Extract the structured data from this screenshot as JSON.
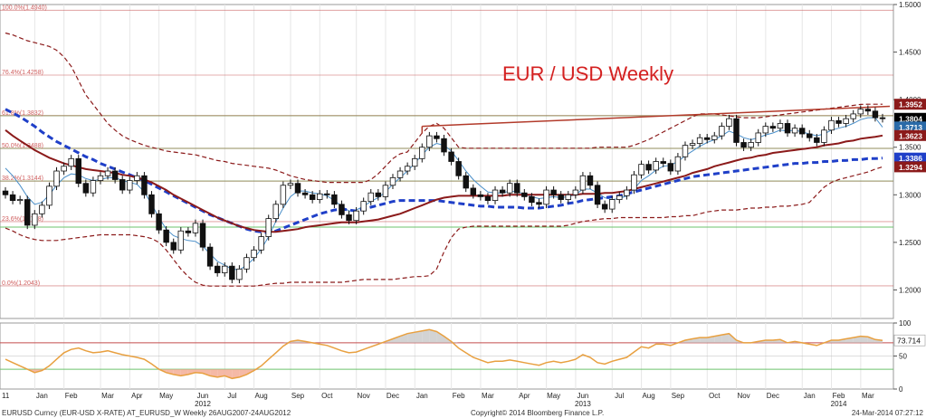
{
  "title": "EUR / USD Weekly",
  "footer": {
    "ticker": "EURUSD Curncy (EUR-USD X-RATE) AT_EURUSD_W  Weekly 26AUG2007-24AUG2012",
    "copyright": "Copyright© 2014 Bloomberg Finance L.P.",
    "timestamp": "24-Mar-2014 07:27:12"
  },
  "colors": {
    "fib": "#c44d4d",
    "tenkan": "#4a8fc9",
    "kijun": "#1f3fc8",
    "ma": "#8b1a1a",
    "band": "#8b1a1a",
    "trend": "#b23a2a",
    "hline": "#6cc36c",
    "rsi": "#e8a040"
  },
  "chart_data": [
    {
      "type": "candlestick",
      "title": "EUR / USD Weekly",
      "ylim": [
        1.17,
        1.5
      ],
      "y_ticks": [
        "1.5000",
        "1.4500",
        "1.4000",
        "1.3500",
        "1.3000",
        "1.2500",
        "1.2000"
      ],
      "y_tick_values": [
        1.5,
        1.45,
        1.4,
        1.35,
        1.3,
        1.25,
        1.2
      ],
      "x_labels": [
        "11",
        "Jan",
        "Feb",
        "Mar",
        "Apr",
        "May",
        "Jun",
        "Jul",
        "Aug",
        "Sep",
        "Oct",
        "Nov",
        "Dec",
        "Jan",
        "Feb",
        "Mar",
        "Apr",
        "May",
        "Jun",
        "Jul",
        "Aug",
        "Sep",
        "Oct",
        "Nov",
        "Dec",
        "Jan",
        "Feb",
        "Mar"
      ],
      "x_label_weeks": [
        0,
        5,
        9,
        14,
        18,
        22,
        27,
        31,
        35,
        40,
        44,
        49,
        53,
        57,
        62,
        66,
        71,
        75,
        79,
        84,
        88,
        92,
        97,
        101,
        105,
        110,
        114,
        118
      ],
      "year_labels": [
        "2012",
        "2013",
        "2014"
      ],
      "year_label_weeks": [
        27,
        79,
        114
      ],
      "fib_levels": [
        {
          "label": "100.0%(1.4940)",
          "value": 1.494
        },
        {
          "label": "76.4%(1.4258)",
          "value": 1.4258
        },
        {
          "label": "61.8%(1.3832)",
          "value": 1.3832
        },
        {
          "label": "50.0%(1.3488)",
          "value": 1.3488
        },
        {
          "label": "38.2%(1.3144)",
          "value": 1.3144
        },
        {
          "label": "23.6%(1.2718)",
          "value": 1.2718
        },
        {
          "label": "0.0%(1.2043)",
          "value": 1.2043
        }
      ],
      "green_lines": [
        1.3832,
        1.3488,
        1.3144,
        1.266
      ],
      "price_tags": [
        {
          "label": "1.3952",
          "value": 1.3952,
          "color": "#8b1a1a"
        },
        {
          "label": "1.3804",
          "value": 1.3804,
          "color": "#000000"
        },
        {
          "label": "1.3713",
          "value": 1.3713,
          "color": "#2a6aa8"
        },
        {
          "label": "1.3623",
          "value": 1.3623,
          "color": "#8b1a1a"
        },
        {
          "label": "1.3386",
          "value": 1.3386,
          "color": "#1f3fc8"
        },
        {
          "label": "1.3294",
          "value": 1.3294,
          "color": "#8b1a1a"
        }
      ],
      "trendline": [
        [
          57,
          1.372
        ],
        [
          121,
          1.393
        ]
      ],
      "closes": [
        1.3,
        1.294,
        1.295,
        1.268,
        1.28,
        1.289,
        1.309,
        1.325,
        1.33,
        1.338,
        1.312,
        1.302,
        1.315,
        1.32,
        1.325,
        1.316,
        1.305,
        1.315,
        1.32,
        1.3,
        1.28,
        1.263,
        1.25,
        1.242,
        1.262,
        1.26,
        1.27,
        1.245,
        1.225,
        1.218,
        1.225,
        1.211,
        1.222,
        1.234,
        1.242,
        1.256,
        1.275,
        1.29,
        1.31,
        1.312,
        1.302,
        1.3,
        1.295,
        1.301,
        1.3,
        1.29,
        1.279,
        1.273,
        1.283,
        1.293,
        1.302,
        1.298,
        1.31,
        1.318,
        1.325,
        1.33,
        1.338,
        1.35,
        1.362,
        1.359,
        1.345,
        1.335,
        1.32,
        1.307,
        1.3,
        1.298,
        1.294,
        1.305,
        1.302,
        1.312,
        1.302,
        1.298,
        1.292,
        1.29,
        1.305,
        1.3,
        1.295,
        1.3,
        1.305,
        1.32,
        1.31,
        1.29,
        1.285,
        1.295,
        1.299,
        1.305,
        1.321,
        1.332,
        1.326,
        1.335,
        1.333,
        1.325,
        1.34,
        1.352,
        1.354,
        1.36,
        1.358,
        1.362,
        1.372,
        1.38,
        1.355,
        1.35,
        1.355,
        1.365,
        1.372,
        1.37,
        1.375,
        1.365,
        1.37,
        1.364,
        1.36,
        1.355,
        1.368,
        1.378,
        1.375,
        1.38,
        1.385,
        1.39,
        1.388,
        1.381,
        1.38
      ],
      "series": [
        {
          "name": "",
          "role": "tenkan",
          "values": [
            1.328,
            1.32,
            1.31,
            1.298,
            1.29,
            1.292,
            1.3,
            1.31,
            1.318,
            1.322,
            1.321,
            1.317,
            1.315,
            1.316,
            1.318,
            1.318,
            1.315,
            1.313,
            1.311,
            1.303,
            1.29,
            1.276,
            1.264,
            1.257,
            1.254,
            1.252,
            1.251,
            1.246,
            1.238,
            1.23,
            1.226,
            1.222,
            1.221,
            1.226,
            1.233,
            1.243,
            1.256,
            1.272,
            1.286,
            1.298,
            1.304,
            1.304,
            1.302,
            1.301,
            1.299,
            1.294,
            1.288,
            1.283,
            1.284,
            1.288,
            1.293,
            1.297,
            1.303,
            1.311,
            1.318,
            1.325,
            1.333,
            1.342,
            1.35,
            1.354,
            1.352,
            1.346,
            1.336,
            1.325,
            1.316,
            1.309,
            1.303,
            1.302,
            1.302,
            1.304,
            1.303,
            1.301,
            1.298,
            1.296,
            1.297,
            1.298,
            1.297,
            1.298,
            1.3,
            1.306,
            1.306,
            1.302,
            1.297,
            1.295,
            1.296,
            1.299,
            1.306,
            1.315,
            1.32,
            1.326,
            1.33,
            1.331,
            1.335,
            1.341,
            1.346,
            1.351,
            1.355,
            1.358,
            1.362,
            1.367,
            1.364,
            1.36,
            1.358,
            1.36,
            1.363,
            1.365,
            1.368,
            1.367,
            1.368,
            1.366,
            1.364,
            1.362,
            1.364,
            1.368,
            1.37,
            1.372,
            1.375,
            1.379,
            1.381,
            1.381,
            1.371
          ]
        },
        {
          "name": "",
          "role": "kijun",
          "values": [
            1.39,
            1.386,
            1.382,
            1.377,
            1.372,
            1.366,
            1.361,
            1.356,
            1.352,
            1.348,
            1.344,
            1.34,
            1.337,
            1.333,
            1.33,
            1.327,
            1.324,
            1.321,
            1.318,
            1.315,
            1.311,
            1.307,
            1.303,
            1.299,
            1.295,
            1.291,
            1.287,
            1.283,
            1.279,
            1.276,
            1.273,
            1.27,
            1.267,
            1.264,
            1.262,
            1.261,
            1.26,
            1.262,
            1.265,
            1.268,
            1.271,
            1.274,
            1.277,
            1.28,
            1.282,
            1.284,
            1.285,
            1.284,
            1.283,
            1.285,
            1.287,
            1.289,
            1.291,
            1.293,
            1.294,
            1.294,
            1.294,
            1.294,
            1.294,
            1.294,
            1.293,
            1.292,
            1.291,
            1.29,
            1.289,
            1.288,
            1.288,
            1.287,
            1.287,
            1.287,
            1.287,
            1.286,
            1.286,
            1.286,
            1.287,
            1.288,
            1.289,
            1.291,
            1.292,
            1.294,
            1.295,
            1.296,
            1.297,
            1.298,
            1.299,
            1.301,
            1.303,
            1.305,
            1.307,
            1.309,
            1.311,
            1.313,
            1.315,
            1.317,
            1.319,
            1.32,
            1.321,
            1.322,
            1.323,
            1.324,
            1.325,
            1.326,
            1.327,
            1.328,
            1.329,
            1.33,
            1.331,
            1.332,
            1.333,
            1.333,
            1.334,
            1.334,
            1.335,
            1.335,
            1.336,
            1.336,
            1.337,
            1.337,
            1.338,
            1.338,
            1.3386
          ]
        },
        {
          "name": "",
          "role": "ma",
          "values": [
            1.368,
            1.362,
            1.357,
            1.352,
            1.347,
            1.343,
            1.339,
            1.336,
            1.333,
            1.331,
            1.329,
            1.327,
            1.326,
            1.325,
            1.324,
            1.323,
            1.321,
            1.32,
            1.318,
            1.316,
            1.313,
            1.309,
            1.305,
            1.3,
            1.296,
            1.292,
            1.288,
            1.284,
            1.28,
            1.276,
            1.273,
            1.27,
            1.267,
            1.265,
            1.263,
            1.262,
            1.261,
            1.261,
            1.262,
            1.263,
            1.264,
            1.266,
            1.267,
            1.268,
            1.269,
            1.27,
            1.271,
            1.271,
            1.271,
            1.272,
            1.273,
            1.274,
            1.276,
            1.278,
            1.28,
            1.283,
            1.286,
            1.289,
            1.292,
            1.295,
            1.297,
            1.298,
            1.299,
            1.299,
            1.299,
            1.299,
            1.299,
            1.299,
            1.299,
            1.3,
            1.3,
            1.3,
            1.3,
            1.3,
            1.3,
            1.3,
            1.3,
            1.3,
            1.3,
            1.301,
            1.301,
            1.301,
            1.302,
            1.302,
            1.303,
            1.304,
            1.306,
            1.308,
            1.31,
            1.312,
            1.314,
            1.316,
            1.318,
            1.32,
            1.323,
            1.325,
            1.327,
            1.33,
            1.332,
            1.334,
            1.336,
            1.338,
            1.339,
            1.341,
            1.342,
            1.344,
            1.345,
            1.346,
            1.347,
            1.348,
            1.349,
            1.35,
            1.352,
            1.353,
            1.354,
            1.356,
            1.357,
            1.359,
            1.36,
            1.361,
            1.3623
          ]
        },
        {
          "name": "",
          "role": "band-upper",
          "values": [
            1.47,
            1.468,
            1.465,
            1.462,
            1.46,
            1.458,
            1.456,
            1.452,
            1.445,
            1.435,
            1.42,
            1.405,
            1.395,
            1.385,
            1.375,
            1.368,
            1.362,
            1.358,
            1.355,
            1.352,
            1.35,
            1.348,
            1.346,
            1.345,
            1.344,
            1.343,
            1.342,
            1.34,
            1.338,
            1.336,
            1.335,
            1.333,
            1.332,
            1.331,
            1.33,
            1.329,
            1.328,
            1.326,
            1.323,
            1.32,
            1.318,
            1.316,
            1.315,
            1.314,
            1.313,
            1.313,
            1.313,
            1.313,
            1.313,
            1.313,
            1.316,
            1.322,
            1.33,
            1.338,
            1.343,
            1.345,
            1.355,
            1.365,
            1.372,
            1.375,
            1.37,
            1.36,
            1.35,
            1.349,
            1.349,
            1.349,
            1.349,
            1.349,
            1.349,
            1.349,
            1.349,
            1.349,
            1.349,
            1.349,
            1.349,
            1.349,
            1.349,
            1.349,
            1.349,
            1.349,
            1.349,
            1.35,
            1.35,
            1.35,
            1.35,
            1.35,
            1.352,
            1.355,
            1.358,
            1.362,
            1.366,
            1.37,
            1.374,
            1.378,
            1.382,
            1.385,
            1.385,
            1.385,
            1.384,
            1.383,
            1.382,
            1.381,
            1.381,
            1.381,
            1.382,
            1.383,
            1.384,
            1.385,
            1.386,
            1.387,
            1.388,
            1.389,
            1.39,
            1.391,
            1.392,
            1.393,
            1.394,
            1.395,
            1.3952,
            1.3952,
            1.3952
          ]
        },
        {
          "name": "",
          "role": "band-lower",
          "values": [
            1.265,
            1.262,
            1.258,
            1.255,
            1.253,
            1.252,
            1.252,
            1.252,
            1.253,
            1.254,
            1.255,
            1.256,
            1.257,
            1.258,
            1.258,
            1.258,
            1.258,
            1.258,
            1.257,
            1.256,
            1.254,
            1.25,
            1.242,
            1.232,
            1.222,
            1.214,
            1.208,
            1.205,
            1.204,
            1.204,
            1.204,
            1.204,
            1.204,
            1.204,
            1.204,
            1.205,
            1.206,
            1.207,
            1.207,
            1.208,
            1.208,
            1.208,
            1.208,
            1.208,
            1.208,
            1.208,
            1.208,
            1.209,
            1.21,
            1.211,
            1.211,
            1.211,
            1.211,
            1.211,
            1.212,
            1.213,
            1.214,
            1.214,
            1.215,
            1.222,
            1.24,
            1.255,
            1.264,
            1.266,
            1.267,
            1.267,
            1.267,
            1.267,
            1.267,
            1.267,
            1.267,
            1.267,
            1.267,
            1.267,
            1.267,
            1.267,
            1.267,
            1.268,
            1.27,
            1.272,
            1.273,
            1.274,
            1.275,
            1.275,
            1.276,
            1.276,
            1.276,
            1.276,
            1.276,
            1.276,
            1.276,
            1.277,
            1.277,
            1.278,
            1.278,
            1.28,
            1.282,
            1.283,
            1.284,
            1.284,
            1.284,
            1.285,
            1.286,
            1.286,
            1.287,
            1.287,
            1.288,
            1.288,
            1.289,
            1.29,
            1.292,
            1.3,
            1.308,
            1.313,
            1.316,
            1.318,
            1.32,
            1.322,
            1.324,
            1.327,
            1.3294
          ]
        }
      ]
    },
    {
      "type": "line",
      "role": "oscillator",
      "ylim": [
        0,
        100
      ],
      "y_ticks": [
        "100",
        "50",
        "0"
      ],
      "y_tick_values": [
        100,
        50,
        0
      ],
      "levels": [
        70,
        30
      ],
      "last_label": "73.714",
      "series": [
        {
          "name": "",
          "values": [
            45,
            40,
            35,
            30,
            25,
            28,
            35,
            45,
            55,
            60,
            62,
            58,
            55,
            56,
            58,
            55,
            52,
            50,
            48,
            45,
            38,
            30,
            25,
            22,
            20,
            22,
            25,
            24,
            20,
            18,
            20,
            16,
            18,
            22,
            28,
            35,
            45,
            55,
            65,
            72,
            74,
            72,
            70,
            68,
            66,
            62,
            58,
            55,
            56,
            60,
            64,
            68,
            72,
            76,
            80,
            84,
            86,
            88,
            90,
            87,
            80,
            72,
            62,
            55,
            48,
            44,
            40,
            42,
            42,
            44,
            42,
            40,
            38,
            36,
            40,
            42,
            40,
            42,
            45,
            52,
            48,
            40,
            38,
            42,
            45,
            48,
            56,
            64,
            62,
            68,
            68,
            66,
            70,
            74,
            76,
            78,
            78,
            80,
            82,
            84,
            74,
            70,
            70,
            72,
            74,
            74,
            75,
            70,
            72,
            70,
            68,
            66,
            70,
            74,
            74,
            76,
            78,
            80,
            79,
            75,
            73.714
          ]
        }
      ]
    }
  ]
}
